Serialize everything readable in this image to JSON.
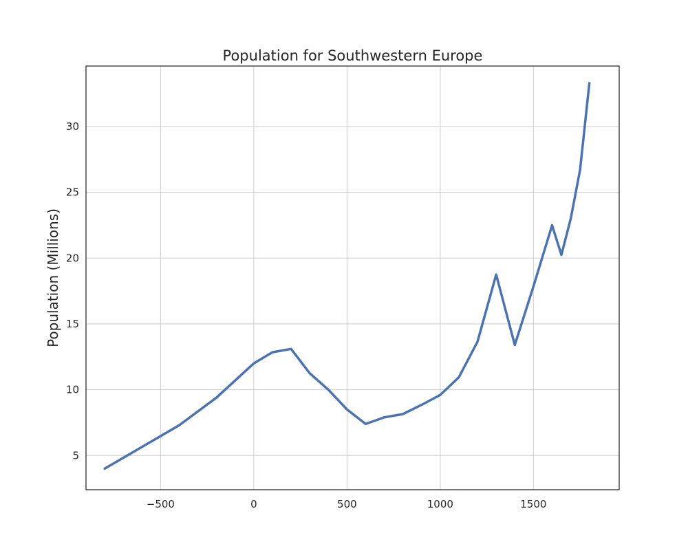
{
  "chart_data": {
    "type": "line",
    "title": "Population for Southwestern Europe",
    "xlabel": "",
    "ylabel": "Population (Millions)",
    "xlim": [
      -900,
      1960
    ],
    "ylim": [
      2.4,
      34.6
    ],
    "xticks": [
      -500,
      0,
      500,
      1000,
      1500
    ],
    "yticks": [
      5,
      10,
      15,
      20,
      25,
      30
    ],
    "xtick_labels": [
      "−500",
      "0",
      "500",
      "1000",
      "1500"
    ],
    "ytick_labels": [
      "5",
      "10",
      "15",
      "20",
      "25",
      "30"
    ],
    "grid": true,
    "legend": false,
    "series": [
      {
        "color": "#4c72b0",
        "x": [
          -800,
          -400,
          -200,
          0,
          100,
          200,
          300,
          400,
          500,
          600,
          700,
          800,
          900,
          1000,
          1100,
          1200,
          1300,
          1400,
          1500,
          1600,
          1650,
          1700,
          1750,
          1800
        ],
        "y": [
          4.0,
          7.3,
          9.4,
          12.0,
          12.85,
          13.1,
          11.25,
          10.0,
          8.5,
          7.4,
          7.9,
          8.15,
          8.85,
          9.6,
          10.95,
          13.65,
          18.75,
          13.4,
          17.85,
          22.5,
          20.25,
          23.0,
          26.7,
          33.3
        ]
      }
    ]
  }
}
